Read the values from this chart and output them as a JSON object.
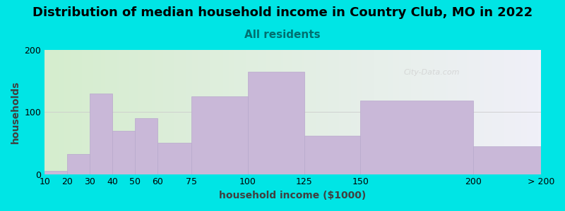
{
  "title": "Distribution of median household income in Country Club, MO in 2022",
  "subtitle": "All residents",
  "xlabel": "household income ($1000)",
  "ylabel": "households",
  "bin_edges": [
    10,
    20,
    30,
    40,
    50,
    60,
    75,
    100,
    125,
    150,
    200,
    230
  ],
  "bin_labels": [
    "10",
    "20",
    "30",
    "40",
    "50",
    "60",
    "75",
    "100",
    "125",
    "150",
    "200",
    "> 200"
  ],
  "bar_heights": [
    5,
    32,
    130,
    70,
    90,
    50,
    125,
    165,
    62,
    118,
    45
  ],
  "bar_color": "#c9b8d8",
  "bar_edge_color": "#b8a8cc",
  "ylim": [
    0,
    200
  ],
  "yticks": [
    0,
    100,
    200
  ],
  "background_color": "#00e5e5",
  "plot_bg_color_left": "#d5edce",
  "plot_bg_color_right": "#f0f0f8",
  "title_fontsize": 13,
  "subtitle_fontsize": 11,
  "subtitle_color": "#007070",
  "axis_label_fontsize": 10,
  "tick_fontsize": 9,
  "watermark": "City-Data.com"
}
